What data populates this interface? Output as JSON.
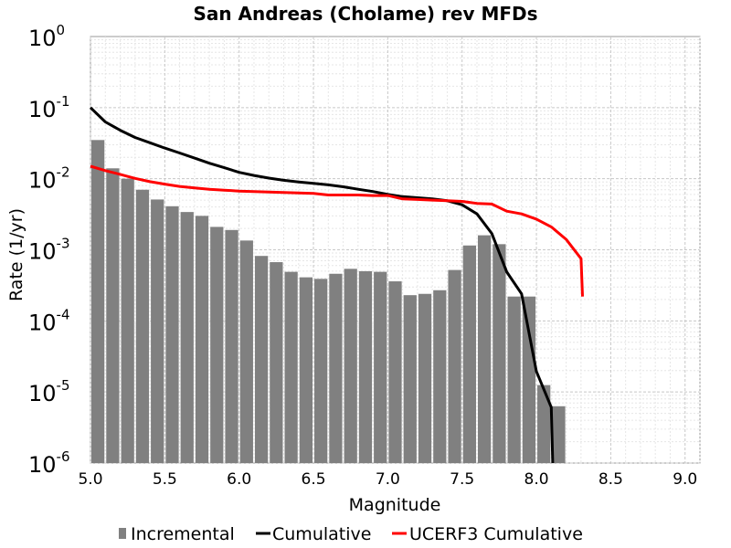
{
  "chart_data": {
    "type": "bar",
    "title": "San Andreas (Cholame) rev MFDs",
    "xlabel": "Magnitude",
    "ylabel": "Rate (1/yr)",
    "xlim": [
      5.0,
      9.1
    ],
    "ylim_log10": [
      -6,
      0
    ],
    "yscale": "log",
    "grid": true,
    "legend_position": "bottom",
    "x_ticks": [
      "5.0",
      "5.5",
      "6.0",
      "6.5",
      "7.0",
      "7.5",
      "8.0",
      "8.5",
      "9.0"
    ],
    "y_ticks": [
      {
        "base": "10",
        "exp": "0"
      },
      {
        "base": "10",
        "exp": "-1"
      },
      {
        "base": "10",
        "exp": "-2"
      },
      {
        "base": "10",
        "exp": "-3"
      },
      {
        "base": "10",
        "exp": "-4"
      },
      {
        "base": "10",
        "exp": "-5"
      },
      {
        "base": "10",
        "exp": "-6"
      }
    ],
    "series": [
      {
        "name": "Incremental",
        "type": "bar",
        "color": "#808080",
        "x": [
          5.05,
          5.15,
          5.25,
          5.35,
          5.45,
          5.55,
          5.65,
          5.75,
          5.85,
          5.95,
          6.05,
          6.15,
          6.25,
          6.35,
          6.45,
          6.55,
          6.65,
          6.75,
          6.85,
          6.95,
          7.05,
          7.15,
          7.25,
          7.35,
          7.45,
          7.55,
          7.65,
          7.75,
          7.85,
          7.95,
          8.05,
          8.15
        ],
        "y": [
          0.035,
          0.014,
          0.01,
          0.007,
          0.0051,
          0.0041,
          0.0034,
          0.003,
          0.0021,
          0.0019,
          0.00135,
          0.00082,
          0.00067,
          0.00049,
          0.00041,
          0.00039,
          0.00046,
          0.00054,
          0.0005,
          0.00049,
          0.00036,
          0.00023,
          0.00024,
          0.00027,
          0.00052,
          0.00115,
          0.0016,
          0.0012,
          0.00022,
          0.00022,
          1.25e-05,
          6.3e-06
        ]
      },
      {
        "name": "Cumulative",
        "type": "line",
        "color": "#000000",
        "x": [
          5.0,
          5.1,
          5.2,
          5.3,
          5.4,
          5.5,
          5.6,
          5.7,
          5.8,
          5.9,
          6.0,
          6.1,
          6.2,
          6.3,
          6.4,
          6.5,
          6.6,
          6.7,
          6.8,
          6.9,
          7.0,
          7.1,
          7.2,
          7.3,
          7.4,
          7.5,
          7.6,
          7.7,
          7.8,
          7.9,
          8.0,
          8.1,
          8.11
        ],
        "y": [
          0.1,
          0.063,
          0.048,
          0.038,
          0.032,
          0.027,
          0.023,
          0.0195,
          0.0165,
          0.0143,
          0.0123,
          0.0111,
          0.0102,
          0.0095,
          0.009,
          0.0086,
          0.0082,
          0.0077,
          0.0071,
          0.0066,
          0.006,
          0.0056,
          0.0054,
          0.0052,
          0.0049,
          0.0043,
          0.0032,
          0.0017,
          0.00049,
          0.00024,
          1.95e-05,
          6.1e-06,
          1e-06
        ]
      },
      {
        "name": "UCERF3 Cumulative",
        "type": "line",
        "color": "#ff0000",
        "x": [
          5.0,
          5.1,
          5.2,
          5.3,
          5.4,
          5.5,
          5.6,
          5.7,
          5.8,
          5.9,
          6.0,
          6.1,
          6.2,
          6.3,
          6.4,
          6.5,
          6.6,
          6.7,
          6.8,
          6.9,
          7.0,
          7.1,
          7.2,
          7.3,
          7.4,
          7.5,
          7.6,
          7.7,
          7.8,
          7.9,
          8.0,
          8.1,
          8.2,
          8.3,
          8.31
        ],
        "y": [
          0.015,
          0.013,
          0.0115,
          0.0101,
          0.0091,
          0.0084,
          0.0078,
          0.0074,
          0.0071,
          0.0069,
          0.0067,
          0.0066,
          0.0065,
          0.0064,
          0.0063,
          0.0062,
          0.0059,
          0.0059,
          0.0059,
          0.0058,
          0.0058,
          0.0052,
          0.0051,
          0.005,
          0.0049,
          0.0048,
          0.0045,
          0.0044,
          0.0035,
          0.0032,
          0.0027,
          0.0021,
          0.0014,
          0.00075,
          0.00022
        ]
      }
    ]
  }
}
